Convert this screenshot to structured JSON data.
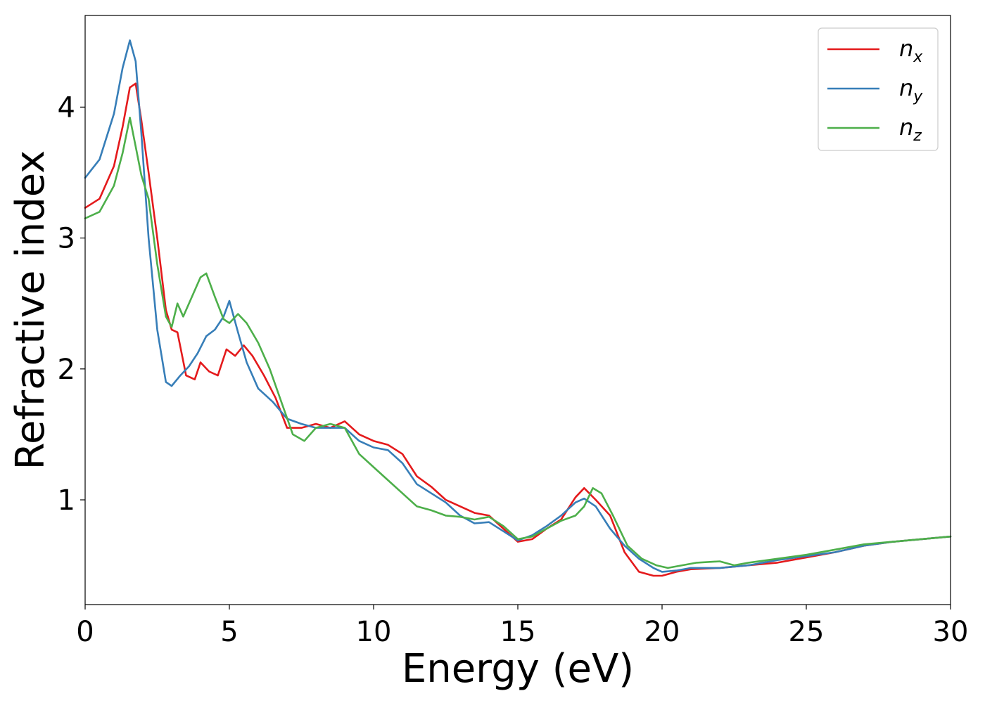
{
  "chart_data": {
    "type": "line",
    "title": "",
    "xlabel": "Energy (eV)",
    "ylabel": "Refractive index",
    "xlim": [
      0,
      30
    ],
    "ylim": [
      0.2,
      4.7
    ],
    "xticks": [
      0,
      5,
      10,
      15,
      20,
      25,
      30
    ],
    "xtick_labels": [
      "0",
      "5",
      "10",
      "15",
      "20",
      "25",
      "30"
    ],
    "yticks": [
      1,
      2,
      3,
      4
    ],
    "ytick_labels": [
      "1",
      "2",
      "3",
      "4"
    ],
    "grid": false,
    "legend_position": "top-right",
    "series": [
      {
        "name": "n_x",
        "legend_base": "n",
        "legend_sub": "x",
        "color": "#e41a1c",
        "x": [
          0,
          0.5,
          1.0,
          1.3,
          1.55,
          1.75,
          1.95,
          2.2,
          2.5,
          2.8,
          3.0,
          3.2,
          3.5,
          3.8,
          4.0,
          4.3,
          4.6,
          4.9,
          5.2,
          5.5,
          5.8,
          6.2,
          6.6,
          7.0,
          7.5,
          8.0,
          8.5,
          9.0,
          9.5,
          10.0,
          10.5,
          11.0,
          11.5,
          12.0,
          12.5,
          13.0,
          13.5,
          14.0,
          14.5,
          15.0,
          15.5,
          16.0,
          16.5,
          17.0,
          17.3,
          17.7,
          18.2,
          18.7,
          19.2,
          19.7,
          20.0,
          20.5,
          21.0,
          22.0,
          23.0,
          24.0,
          25.0,
          26.0,
          27.0,
          28.0,
          29.0,
          30.0
        ],
        "y": [
          3.23,
          3.3,
          3.55,
          3.85,
          4.15,
          4.18,
          3.9,
          3.5,
          3.0,
          2.45,
          2.3,
          2.28,
          1.95,
          1.92,
          2.05,
          1.98,
          1.95,
          2.15,
          2.1,
          2.18,
          2.1,
          1.95,
          1.78,
          1.55,
          1.55,
          1.58,
          1.55,
          1.6,
          1.5,
          1.45,
          1.42,
          1.35,
          1.18,
          1.1,
          1.0,
          0.95,
          0.9,
          0.88,
          0.78,
          0.68,
          0.7,
          0.78,
          0.85,
          1.02,
          1.09,
          1.0,
          0.88,
          0.6,
          0.45,
          0.42,
          0.42,
          0.45,
          0.47,
          0.48,
          0.5,
          0.52,
          0.56,
          0.6,
          0.65,
          0.68,
          0.7,
          0.72
        ]
      },
      {
        "name": "n_y",
        "legend_base": "n",
        "legend_sub": "y",
        "color": "#377eb8",
        "x": [
          0,
          0.5,
          1.0,
          1.3,
          1.55,
          1.75,
          1.95,
          2.2,
          2.5,
          2.8,
          3.0,
          3.3,
          3.6,
          3.9,
          4.2,
          4.5,
          4.8,
          5.0,
          5.3,
          5.6,
          6.0,
          6.5,
          7.0,
          7.5,
          8.0,
          8.5,
          9.0,
          9.5,
          10.0,
          10.5,
          11.0,
          11.5,
          12.0,
          12.5,
          13.0,
          13.5,
          14.0,
          14.5,
          15.0,
          15.5,
          16.0,
          16.5,
          17.0,
          17.3,
          17.7,
          18.2,
          18.7,
          19.2,
          19.7,
          20.0,
          20.5,
          21.0,
          22.0,
          23.0,
          24.0,
          25.0,
          26.0,
          27.0,
          28.0,
          29.0,
          30.0
        ],
        "y": [
          3.46,
          3.6,
          3.95,
          4.3,
          4.51,
          4.35,
          3.8,
          3.0,
          2.3,
          1.9,
          1.87,
          1.95,
          2.02,
          2.12,
          2.25,
          2.3,
          2.4,
          2.52,
          2.28,
          2.05,
          1.85,
          1.75,
          1.62,
          1.58,
          1.55,
          1.55,
          1.55,
          1.45,
          1.4,
          1.38,
          1.28,
          1.12,
          1.05,
          0.98,
          0.88,
          0.82,
          0.83,
          0.76,
          0.69,
          0.73,
          0.8,
          0.88,
          0.98,
          1.01,
          0.95,
          0.78,
          0.65,
          0.55,
          0.48,
          0.45,
          0.46,
          0.48,
          0.48,
          0.5,
          0.54,
          0.57,
          0.6,
          0.65,
          0.68,
          0.7,
          0.72
        ]
      },
      {
        "name": "n_z",
        "legend_base": "n",
        "legend_sub": "z",
        "color": "#4daf4a",
        "x": [
          0,
          0.5,
          1.0,
          1.3,
          1.55,
          1.75,
          1.95,
          2.2,
          2.5,
          2.8,
          3.0,
          3.2,
          3.4,
          3.7,
          4.0,
          4.2,
          4.5,
          4.8,
          5.0,
          5.3,
          5.6,
          6.0,
          6.4,
          6.8,
          7.2,
          7.6,
          8.0,
          8.5,
          9.0,
          9.5,
          10.0,
          10.5,
          11.0,
          11.5,
          12.0,
          12.5,
          13.0,
          13.5,
          14.0,
          14.5,
          15.0,
          15.5,
          16.0,
          16.5,
          17.0,
          17.3,
          17.6,
          17.9,
          18.3,
          18.8,
          19.3,
          19.8,
          20.2,
          20.7,
          21.2,
          22.0,
          22.5,
          23.0,
          24.0,
          25.0,
          26.0,
          27.0,
          28.0,
          29.0,
          30.0
        ],
        "y": [
          3.15,
          3.2,
          3.4,
          3.65,
          3.92,
          3.7,
          3.48,
          3.3,
          2.8,
          2.4,
          2.32,
          2.5,
          2.4,
          2.55,
          2.7,
          2.73,
          2.55,
          2.38,
          2.35,
          2.42,
          2.35,
          2.2,
          2.0,
          1.75,
          1.5,
          1.45,
          1.55,
          1.58,
          1.55,
          1.35,
          1.25,
          1.15,
          1.05,
          0.95,
          0.92,
          0.88,
          0.87,
          0.85,
          0.87,
          0.8,
          0.7,
          0.72,
          0.78,
          0.84,
          0.88,
          0.95,
          1.09,
          1.05,
          0.88,
          0.65,
          0.55,
          0.5,
          0.48,
          0.5,
          0.52,
          0.53,
          0.5,
          0.52,
          0.55,
          0.58,
          0.62,
          0.66,
          0.68,
          0.7,
          0.72
        ]
      }
    ]
  }
}
